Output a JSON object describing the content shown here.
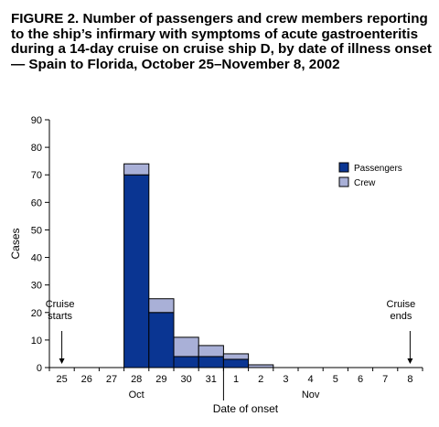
{
  "figure": {
    "title": "FIGURE 2. Number of passengers and crew members reporting to the ship’s infirmary with symptoms of acute gastroenteritis during a 14-day cruise on cruise ship D, by date of illness onset — Spain to Florida, October 25–November 8, 2002"
  },
  "chart_data": {
    "type": "bar",
    "stacked": true,
    "categories": [
      "25",
      "26",
      "27",
      "28",
      "29",
      "30",
      "31",
      "1",
      "2",
      "3",
      "4",
      "5",
      "6",
      "7",
      "8"
    ],
    "month_labels": [
      {
        "label": "Oct",
        "under_category": "28"
      },
      {
        "label": "Nov",
        "under_category": "4"
      }
    ],
    "series": [
      {
        "name": "Passengers",
        "color": "#0a3592",
        "values": [
          0,
          0,
          0,
          70,
          20,
          4,
          4,
          3,
          0,
          0,
          0,
          0,
          0,
          0,
          0
        ]
      },
      {
        "name": "Crew",
        "color": "#a9b0d7",
        "values": [
          0,
          0,
          0,
          4,
          5,
          7,
          4,
          2,
          1,
          0,
          0,
          0,
          0,
          0,
          0
        ]
      }
    ],
    "xlabel": "Date of onset",
    "ylabel": "Cases",
    "ylim": [
      0,
      90
    ],
    "yticks": [
      0,
      10,
      20,
      30,
      40,
      50,
      60,
      70,
      80,
      90
    ],
    "grid": false,
    "legend_position": "top-right",
    "annotations": [
      {
        "lines": [
          "Cruise",
          "starts"
        ],
        "category": "25",
        "arrow": true
      },
      {
        "lines": [
          "Cruise",
          "ends"
        ],
        "category": "8",
        "arrow": true
      }
    ]
  }
}
